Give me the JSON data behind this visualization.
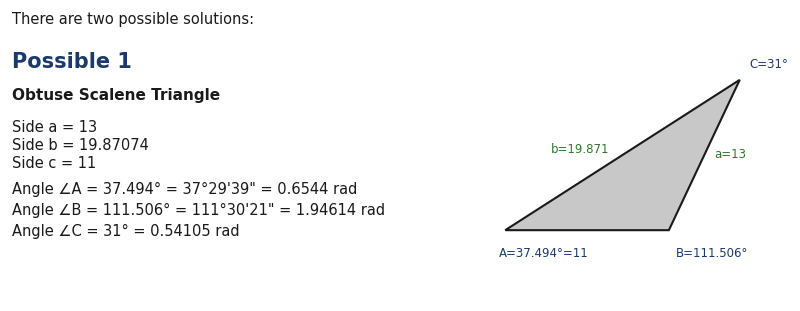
{
  "header": "There are two possible solutions:",
  "possible_label": "Possible 1",
  "triangle_type": "Obtuse Scalene Triangle",
  "side_lines": [
    "Side a = 13",
    "Side b = 19.87074",
    "Side c = 11"
  ],
  "angle_lines": [
    "Angle ∠A = 37.494° = 37°29'39\" = 0.6544 rad",
    "Angle ∠B = 111.506° = 111°30'21\" = 1.94614 rad",
    "Angle ∠C = 31° = 0.54105 rad"
  ],
  "triangle_fill": "#c8c8c8",
  "triangle_edge": "#1a1a1a",
  "label_A": "A=37.494°=11",
  "label_B": "B=111.506°",
  "label_C": "C=31°",
  "label_a": "a=13",
  "label_b": "b=19.871",
  "label_color_vertex": "#1a3a6b",
  "label_color_side": "#2d7a2d",
  "text_color": "#1a1a1a",
  "possible_color": "#1a3a6b",
  "background_color": "#ffffff"
}
